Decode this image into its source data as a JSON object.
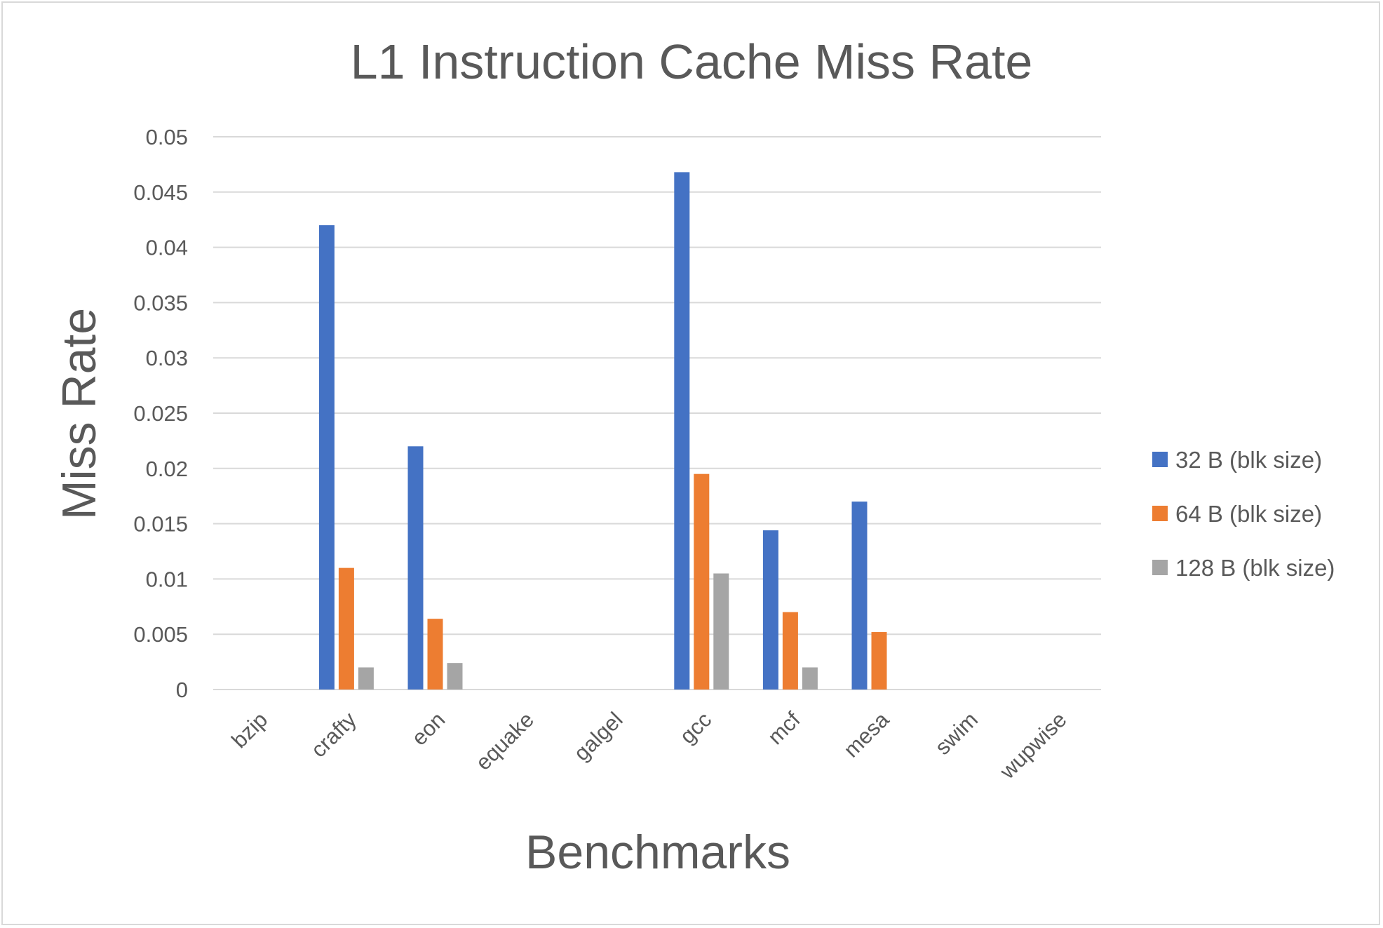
{
  "chart_data": {
    "type": "bar",
    "title": "L1 Instruction Cache Miss Rate",
    "xlabel": "Benchmarks",
    "ylabel": "Miss Rate",
    "categories": [
      "bzip",
      "crafty",
      "eon",
      "equake",
      "galgel",
      "gcc",
      "mcf",
      "mesa",
      "swim",
      "wupwise"
    ],
    "series": [
      {
        "name": "32 B (blk size)",
        "color": "#4472c4",
        "values": [
          0,
          0.042,
          0.022,
          0,
          0,
          0.0468,
          0.0144,
          0.017,
          0,
          0
        ]
      },
      {
        "name": "64 B (blk size)",
        "color": "#ed7d31",
        "values": [
          0,
          0.011,
          0.0064,
          0,
          0,
          0.0195,
          0.007,
          0.0052,
          0,
          0
        ]
      },
      {
        "name": "128 B (blk size)",
        "color": "#a5a5a5",
        "values": [
          0,
          0.002,
          0.0024,
          0,
          0,
          0.0105,
          0.002,
          0,
          0,
          0
        ]
      }
    ],
    "yticks": [
      "0",
      "0.005",
      "0.01",
      "0.015",
      "0.02",
      "0.025",
      "0.03",
      "0.035",
      "0.04",
      "0.045",
      "0.05"
    ],
    "ylim": [
      0,
      0.05
    ],
    "grid": true,
    "legend_position": "right"
  }
}
